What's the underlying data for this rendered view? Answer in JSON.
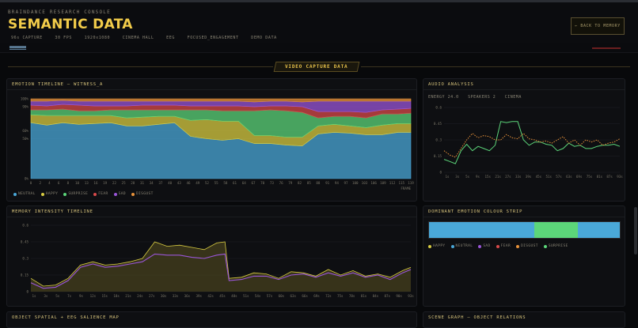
{
  "header": {
    "brand": "BRAINDANCE RESEARCH CONSOLE",
    "title": "SEMANTIC DATA",
    "meta": [
      "96s CAPTURE",
      "30 FPS",
      "1920x1080",
      "CINEMA HALL",
      "EEG",
      "FOCUSED_ENGAGEMENT",
      "DEMO DATA"
    ],
    "back_label": "← BACK TO MEMORY"
  },
  "subnav": {
    "link": "■■■■■■■"
  },
  "section": {
    "title": "VIDEO CAPTURE DATA"
  },
  "colors": {
    "accent": "#f2cc4a",
    "neutral": "#4aa8d8",
    "happy": "#d8cc42",
    "surprise": "#5cd67a",
    "fear": "#d84a4a",
    "sad": "#9a56d8",
    "disgust": "#e8923a"
  },
  "panels": {
    "emotion": {
      "title": "EMOTION TIMELINE — WITNESS_A"
    },
    "audio": {
      "title": "AUDIO ANALYSIS",
      "energy": "ENERGY 24.0",
      "speakers": "SPEAKERS 2",
      "scene": "CINEMA"
    },
    "memory": {
      "title": "MEMORY INTENSITY TIMELINE"
    },
    "strip": {
      "title": "DOMINANT EMOTION COLOUR STRIP"
    },
    "spatial": {
      "title": "OBJECT SPATIAL + EEG SALIENCE MAP"
    },
    "scene": {
      "title": "SCENE GRAPH — OBJECT RELATIONS"
    }
  },
  "chart_data": [
    {
      "type": "area",
      "title": "EMOTION TIMELINE — WITNESS_A",
      "xlabel": "FRAME",
      "ylabel": "",
      "stacked": true,
      "ylim": [
        0,
        100
      ],
      "y_ticks": [
        "0%",
        "50%",
        "60%",
        "90%",
        "100%"
      ],
      "x_ticks": [
        "0",
        "2",
        "4",
        "6",
        "8",
        "10",
        "13",
        "16",
        "19",
        "22",
        "25",
        "28",
        "31",
        "34",
        "37",
        "40",
        "43",
        "46",
        "49",
        "52",
        "55",
        "58",
        "61",
        "64",
        "67",
        "70",
        "73",
        "76",
        "79",
        "82",
        "85",
        "88",
        "91",
        "94",
        "97",
        "100",
        "103",
        "106",
        "109",
        "112",
        "115",
        "119"
      ],
      "x": [
        0,
        5,
        10,
        15,
        20,
        25,
        30,
        35,
        40,
        45,
        50,
        55,
        60,
        65,
        70,
        75,
        80,
        85,
        90,
        95,
        100,
        105,
        110,
        115,
        119
      ],
      "series": [
        {
          "name": "NEUTRAL",
          "color": "#4aa8d8",
          "values": [
            70,
            67,
            70,
            68,
            69,
            70,
            66,
            66,
            68,
            70,
            53,
            50,
            48,
            50,
            44,
            44,
            42,
            41,
            56,
            58,
            57,
            55,
            55,
            58,
            58
          ]
        },
        {
          "name": "HAPPY",
          "color": "#d8cc42",
          "values": [
            10,
            12,
            9,
            11,
            10,
            9,
            10,
            11,
            10,
            8,
            20,
            24,
            24,
            22,
            10,
            10,
            10,
            11,
            10,
            10,
            9,
            9,
            12,
            11,
            11
          ]
        },
        {
          "name": "SURPRISE",
          "color": "#5cd67a",
          "values": [
            6,
            7,
            8,
            6,
            6,
            7,
            10,
            9,
            8,
            8,
            13,
            12,
            13,
            13,
            31,
            32,
            33,
            31,
            10,
            10,
            12,
            12,
            14,
            12,
            13
          ]
        },
        {
          "name": "FEAR",
          "color": "#d84a4a",
          "values": [
            6,
            5,
            6,
            7,
            6,
            5,
            5,
            6,
            6,
            6,
            5,
            5,
            6,
            6,
            5,
            5,
            6,
            7,
            8,
            6,
            6,
            7,
            5,
            6,
            6
          ]
        },
        {
          "name": "SAD",
          "color": "#9a56d8",
          "values": [
            5,
            6,
            5,
            5,
            6,
            6,
            6,
            5,
            5,
            5,
            6,
            6,
            6,
            6,
            6,
            6,
            6,
            6,
            13,
            13,
            13,
            14,
            11,
            10,
            9
          ]
        },
        {
          "name": "DISGUST",
          "color": "#e8923a",
          "values": [
            3,
            3,
            2,
            3,
            3,
            3,
            3,
            3,
            3,
            3,
            3,
            3,
            3,
            3,
            4,
            3,
            3,
            4,
            3,
            3,
            3,
            3,
            3,
            3,
            3
          ]
        }
      ],
      "legend": "bottom-left"
    },
    {
      "type": "line",
      "title": "AUDIO ANALYSIS",
      "xlabel": "",
      "ylabel": "",
      "ylim": [
        0,
        0.6
      ],
      "y_ticks": [
        "0",
        "0.15",
        "0.3",
        "0.45",
        "0.6"
      ],
      "x_ticks": [
        "1s",
        "3s",
        "5s",
        "9s",
        "15s",
        "21s",
        "27s",
        "33s",
        "39s",
        "45s",
        "51s",
        "57s",
        "63s",
        "69s",
        "75s",
        "81s",
        "87s",
        "93s"
      ],
      "x": [
        1,
        4,
        7,
        10,
        13,
        16,
        19,
        22,
        25,
        28,
        31,
        34,
        37,
        40,
        43,
        46,
        49,
        52,
        55,
        58,
        61,
        64,
        67,
        70,
        73,
        76,
        79,
        82,
        85,
        88,
        91,
        94
      ],
      "series": [
        {
          "name": "",
          "color": "#5cd67a",
          "values": [
            0.12,
            0.1,
            0.08,
            0.2,
            0.26,
            0.2,
            0.24,
            0.22,
            0.2,
            0.25,
            0.47,
            0.46,
            0.47,
            0.47,
            0.3,
            0.25,
            0.28,
            0.28,
            0.26,
            0.25,
            0.2,
            0.22,
            0.27,
            0.24,
            0.25,
            0.22,
            0.22,
            0.24,
            0.25,
            0.25,
            0.26,
            0.24
          ]
        },
        {
          "name": "",
          "color": "#e8923a",
          "dashed": true,
          "values": [
            0.2,
            0.16,
            0.14,
            0.22,
            0.3,
            0.36,
            0.32,
            0.34,
            0.33,
            0.3,
            0.3,
            0.35,
            0.32,
            0.31,
            0.36,
            0.31,
            0.3,
            0.28,
            0.29,
            0.27,
            0.3,
            0.33,
            0.27,
            0.3,
            0.25,
            0.3,
            0.28,
            0.3,
            0.25,
            0.27,
            0.28,
            0.31
          ]
        }
      ]
    },
    {
      "type": "area",
      "title": "MEMORY INTENSITY TIMELINE",
      "xlabel": "",
      "ylabel": "",
      "ylim": [
        0,
        0.6
      ],
      "y_ticks": [
        "0",
        "0.15",
        "0.3",
        "0.45",
        "0.6"
      ],
      "x_ticks": [
        "1s",
        "3s",
        "5s",
        "7s",
        "9s",
        "12s",
        "15s",
        "18s",
        "21s",
        "24s",
        "27s",
        "30s",
        "33s",
        "36s",
        "39s",
        "42s",
        "45s",
        "48s",
        "51s",
        "54s",
        "57s",
        "60s",
        "63s",
        "66s",
        "69s",
        "72s",
        "75s",
        "78s",
        "81s",
        "84s",
        "87s",
        "90s",
        "93s"
      ],
      "x": [
        1,
        4,
        7,
        10,
        13,
        16,
        19,
        22,
        25,
        28,
        31,
        34,
        37,
        40,
        43,
        46,
        48,
        49,
        52,
        55,
        58,
        61,
        64,
        67,
        70,
        73,
        76,
        79,
        82,
        85,
        88,
        91,
        93
      ],
      "series": [
        {
          "name": "",
          "color": "#d8cc42",
          "values": [
            0.12,
            0.05,
            0.06,
            0.12,
            0.24,
            0.27,
            0.24,
            0.25,
            0.27,
            0.3,
            0.45,
            0.41,
            0.42,
            0.4,
            0.38,
            0.44,
            0.45,
            0.12,
            0.13,
            0.17,
            0.16,
            0.12,
            0.18,
            0.17,
            0.14,
            0.2,
            0.15,
            0.19,
            0.14,
            0.16,
            0.13,
            0.19,
            0.22
          ]
        },
        {
          "name": "",
          "color": "#9a56d8",
          "values": [
            0.08,
            0.03,
            0.04,
            0.1,
            0.22,
            0.25,
            0.22,
            0.23,
            0.25,
            0.27,
            0.34,
            0.33,
            0.33,
            0.31,
            0.3,
            0.33,
            0.34,
            0.1,
            0.11,
            0.14,
            0.14,
            0.11,
            0.15,
            0.16,
            0.13,
            0.17,
            0.14,
            0.17,
            0.13,
            0.15,
            0.11,
            0.17,
            0.2
          ]
        }
      ]
    },
    {
      "type": "heatmap",
      "title": "DOMINANT EMOTION COLOUR STRIP",
      "categories": [
        "NEUTRAL",
        "SURPRISE",
        "NEUTRAL"
      ],
      "values": [
        55,
        23,
        22
      ],
      "legend_entries": [
        "HAPPY",
        "NEUTRAL",
        "SAD",
        "FEAR",
        "DISGUST",
        "SURPRISE"
      ]
    }
  ]
}
